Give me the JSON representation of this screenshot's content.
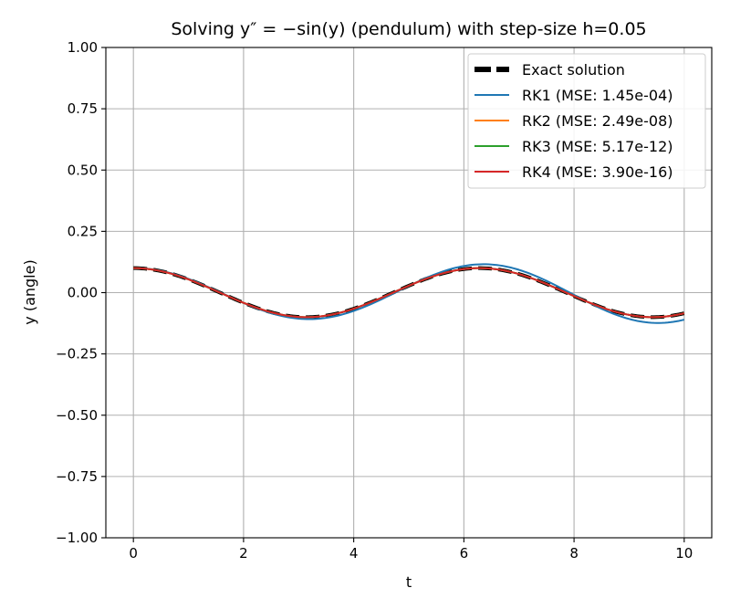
{
  "chart_data": {
    "type": "line",
    "title": "Solving y″ = −sin(y) (pendulum) with step-size h=0.05",
    "xlabel": "t",
    "ylabel": "y (angle)",
    "xlim": [
      -0.5,
      10.5
    ],
    "ylim": [
      -1.0,
      1.0
    ],
    "xticks": [
      0,
      2,
      4,
      6,
      8,
      10
    ],
    "xtick_labels": [
      "0",
      "2",
      "4",
      "6",
      "8",
      "10"
    ],
    "yticks": [
      -1.0,
      -0.75,
      -0.5,
      -0.25,
      0.0,
      0.25,
      0.5,
      0.75,
      1.0
    ],
    "ytick_labels": [
      "−1.00",
      "−0.75",
      "−0.50",
      "−0.25",
      "0.00",
      "0.25",
      "0.50",
      "0.75",
      "1.00"
    ],
    "grid": true,
    "legend_position": "top-right",
    "model": {
      "t_start": 0,
      "t_end": 10,
      "amplitude": 0.1,
      "angular_frequency": 0.9995
    },
    "series": [
      {
        "name": "Exact solution",
        "color": "#000000",
        "style": "dashed",
        "amp_growth": 0.0,
        "freq_shift": 0.0
      },
      {
        "name": "RK1 (MSE: 1.45e-04)",
        "color": "#1f77b4",
        "style": "solid",
        "amp_growth": 0.025,
        "freq_shift": -0.008
      },
      {
        "name": "RK2 (MSE: 2.49e-08)",
        "color": "#ff7f0e",
        "style": "solid",
        "amp_growth": 0.0,
        "freq_shift": 0.0
      },
      {
        "name": "RK3 (MSE: 5.17e-12)",
        "color": "#2ca02c",
        "style": "solid",
        "amp_growth": 0.0,
        "freq_shift": 0.0
      },
      {
        "name": "RK4 (MSE: 3.90e-16)",
        "color": "#d62728",
        "style": "solid",
        "amp_growth": 0.0,
        "freq_shift": 0.0
      }
    ]
  }
}
